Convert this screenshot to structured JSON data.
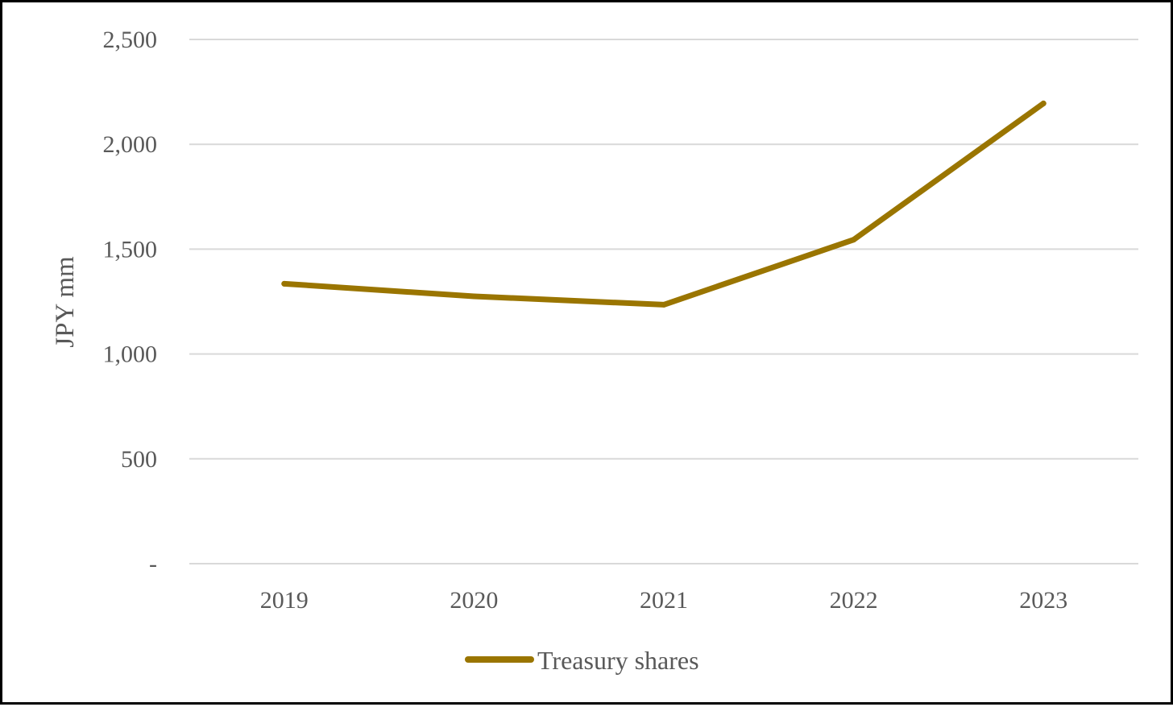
{
  "chart_data": {
    "type": "line",
    "title": "",
    "xlabel": "",
    "ylabel": "JPY mm",
    "categories": [
      "2019",
      "2020",
      "2021",
      "2022",
      "2023"
    ],
    "series": [
      {
        "name": "Treasury shares",
        "values": [
          1335,
          1275,
          1235,
          1545,
          2195
        ],
        "color": "#9A7500"
      }
    ],
    "ylim": [
      0,
      2500
    ],
    "yticks": [
      {
        "value": 0,
        "label": "-"
      },
      {
        "value": 500,
        "label": "500"
      },
      {
        "value": 1000,
        "label": "1,000"
      },
      {
        "value": 1500,
        "label": "1,500"
      },
      {
        "value": 2000,
        "label": "2,000"
      },
      {
        "value": 2500,
        "label": "2,500"
      }
    ],
    "grid": true,
    "legend": "bottom"
  }
}
